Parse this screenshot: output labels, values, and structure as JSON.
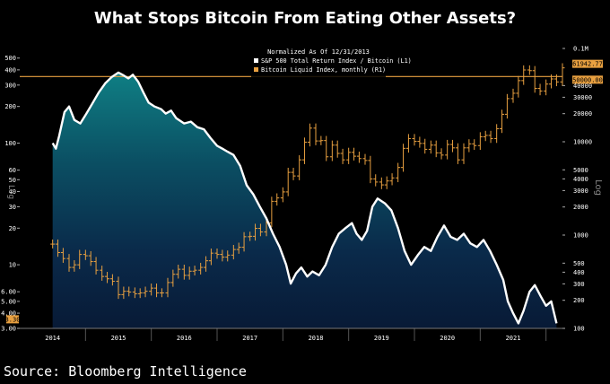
{
  "header": {
    "title": "What Stops Bitcoin From Eating Other Assets?"
  },
  "footer": {
    "source": "Source: Bloomberg Intelligence"
  },
  "chart_data": {
    "type": "line",
    "title": "",
    "legend_placement": "top-center",
    "legend": {
      "header": "Normalized As Of 12/31/2013",
      "items": [
        {
          "label": "S&P 500 Total Return Index / Bitcoin (L1)",
          "color": "#ffffff"
        },
        {
          "label": "Bitcoin Liquid Index, monthly (R1)",
          "color": "#e8a040"
        }
      ]
    },
    "x_categories": [
      "2014",
      "2015",
      "2016",
      "2017",
      "2018",
      "2019",
      "2020",
      "2021"
    ],
    "left_axis": {
      "label": "Log",
      "scale": "log",
      "range": [
        3,
        600
      ],
      "ticks": [
        "500",
        "400",
        "300",
        "200",
        "100",
        "60",
        "50",
        "40",
        "30",
        "20",
        "10",
        "6.00",
        "5.00",
        "4.00",
        "3.00"
      ],
      "tick_values": [
        500,
        400,
        300,
        200,
        100,
        60,
        50,
        40,
        30,
        20,
        10,
        6,
        5,
        4,
        3
      ]
    },
    "right_axis": {
      "label": "Log",
      "scale": "log",
      "range": [
        100,
        100000
      ],
      "ticks": [
        "0.1M",
        "40000",
        "30000",
        "20000",
        "10000",
        "5000",
        "4000",
        "3000",
        "2000",
        "1000",
        "500",
        "400",
        "300",
        "200",
        "100"
      ],
      "tick_values": [
        100000,
        40000,
        30000,
        20000,
        10000,
        5000,
        4000,
        3000,
        2000,
        1000,
        500,
        400,
        300,
        200,
        100
      ]
    },
    "reference_line": {
      "value": 50000,
      "axis": "right",
      "label": "50000.00",
      "color": "#e8a040"
    },
    "last_value_labels": [
      {
        "label": "61942.77",
        "axis": "right",
        "value": 61942.77,
        "color": "#e8a040"
      },
      {
        "label": "50000.00",
        "axis": "right",
        "value": 50000,
        "color": "#e8a040"
      },
      {
        "label": "3.30",
        "axis": "left",
        "value": 3.3,
        "color": "#e8a040"
      }
    ],
    "series": [
      {
        "name": "S&P 500 Total Return Index / Bitcoin (L1)",
        "axis": "left",
        "color": "#ffffff",
        "style": "line-area",
        "points": [
          [
            2014.0,
            100
          ],
          [
            2014.05,
            90
          ],
          [
            2014.1,
            115
          ],
          [
            2014.18,
            180
          ],
          [
            2014.25,
            200
          ],
          [
            2014.33,
            155
          ],
          [
            2014.42,
            145
          ],
          [
            2014.5,
            170
          ],
          [
            2014.6,
            210
          ],
          [
            2014.7,
            260
          ],
          [
            2014.8,
            310
          ],
          [
            2014.9,
            350
          ],
          [
            2015.0,
            380
          ],
          [
            2015.08,
            360
          ],
          [
            2015.15,
            340
          ],
          [
            2015.22,
            365
          ],
          [
            2015.3,
            320
          ],
          [
            2015.38,
            260
          ],
          [
            2015.46,
            215
          ],
          [
            2015.55,
            200
          ],
          [
            2015.65,
            190
          ],
          [
            2015.72,
            175
          ],
          [
            2015.8,
            185
          ],
          [
            2015.88,
            160
          ],
          [
            2016.0,
            145
          ],
          [
            2016.1,
            150
          ],
          [
            2016.2,
            135
          ],
          [
            2016.3,
            130
          ],
          [
            2016.4,
            110
          ],
          [
            2016.5,
            95
          ],
          [
            2016.58,
            90
          ],
          [
            2016.66,
            85
          ],
          [
            2016.75,
            80
          ],
          [
            2016.85,
            65
          ],
          [
            2016.95,
            45
          ],
          [
            2017.05,
            38
          ],
          [
            2017.15,
            30
          ],
          [
            2017.25,
            24
          ],
          [
            2017.35,
            18
          ],
          [
            2017.45,
            14
          ],
          [
            2017.55,
            10
          ],
          [
            2017.62,
            7
          ],
          [
            2017.7,
            8.5
          ],
          [
            2017.78,
            9.5
          ],
          [
            2017.87,
            8
          ],
          [
            2017.95,
            8.8
          ],
          [
            2018.05,
            8.2
          ],
          [
            2018.15,
            10
          ],
          [
            2018.25,
            14
          ],
          [
            2018.35,
            18
          ],
          [
            2018.45,
            20
          ],
          [
            2018.55,
            22
          ],
          [
            2018.62,
            18
          ],
          [
            2018.7,
            16
          ],
          [
            2018.78,
            19
          ],
          [
            2018.86,
            30
          ],
          [
            2018.94,
            35
          ],
          [
            2019.05,
            32
          ],
          [
            2019.15,
            28
          ],
          [
            2019.25,
            20
          ],
          [
            2019.35,
            13
          ],
          [
            2019.45,
            10
          ],
          [
            2019.55,
            12
          ],
          [
            2019.65,
            14
          ],
          [
            2019.75,
            13
          ],
          [
            2019.85,
            17
          ],
          [
            2019.95,
            21
          ],
          [
            2020.05,
            17
          ],
          [
            2020.15,
            16
          ],
          [
            2020.25,
            18
          ],
          [
            2020.35,
            15
          ],
          [
            2020.45,
            14
          ],
          [
            2020.55,
            16
          ],
          [
            2020.65,
            13
          ],
          [
            2020.75,
            10
          ],
          [
            2020.85,
            7.5
          ],
          [
            2020.92,
            5
          ],
          [
            2021.0,
            4
          ],
          [
            2021.08,
            3.3
          ],
          [
            2021.16,
            4.2
          ],
          [
            2021.25,
            6
          ],
          [
            2021.33,
            6.8
          ],
          [
            2021.42,
            5.5
          ],
          [
            2021.5,
            4.6
          ],
          [
            2021.58,
            5
          ],
          [
            2021.66,
            3.3
          ]
        ]
      },
      {
        "name": "Bitcoin Liquid Index, monthly (R1)",
        "axis": "right",
        "color": "#e8a040",
        "style": "ohlc-bars",
        "points": [
          [
            2014.0,
            800
          ],
          [
            2014.08,
            650
          ],
          [
            2014.16,
            560
          ],
          [
            2014.25,
            450
          ],
          [
            2014.33,
            480
          ],
          [
            2014.41,
            620
          ],
          [
            2014.5,
            600
          ],
          [
            2014.58,
            520
          ],
          [
            2014.66,
            420
          ],
          [
            2014.75,
            360
          ],
          [
            2014.83,
            340
          ],
          [
            2014.91,
            320
          ],
          [
            2015.0,
            230
          ],
          [
            2015.08,
            250
          ],
          [
            2015.16,
            245
          ],
          [
            2015.25,
            235
          ],
          [
            2015.33,
            240
          ],
          [
            2015.41,
            250
          ],
          [
            2015.5,
            270
          ],
          [
            2015.58,
            240
          ],
          [
            2015.66,
            240
          ],
          [
            2015.75,
            310
          ],
          [
            2015.83,
            380
          ],
          [
            2015.91,
            430
          ],
          [
            2016.0,
            370
          ],
          [
            2016.08,
            410
          ],
          [
            2016.16,
            420
          ],
          [
            2016.25,
            450
          ],
          [
            2016.33,
            530
          ],
          [
            2016.41,
            640
          ],
          [
            2016.5,
            620
          ],
          [
            2016.58,
            580
          ],
          [
            2016.66,
            610
          ],
          [
            2016.75,
            700
          ],
          [
            2016.83,
            740
          ],
          [
            2016.91,
            960
          ],
          [
            2017.0,
            970
          ],
          [
            2017.08,
            1180
          ],
          [
            2017.16,
            1080
          ],
          [
            2017.25,
            1350
          ],
          [
            2017.33,
            2300
          ],
          [
            2017.41,
            2500
          ],
          [
            2017.5,
            2900
          ],
          [
            2017.58,
            4700
          ],
          [
            2017.66,
            4300
          ],
          [
            2017.75,
            6400
          ],
          [
            2017.83,
            9900
          ],
          [
            2017.91,
            14000
          ],
          [
            2018.0,
            10200
          ],
          [
            2018.08,
            10300
          ],
          [
            2018.16,
            6900
          ],
          [
            2018.25,
            9200
          ],
          [
            2018.33,
            7500
          ],
          [
            2018.41,
            6400
          ],
          [
            2018.5,
            7700
          ],
          [
            2018.58,
            7000
          ],
          [
            2018.66,
            6600
          ],
          [
            2018.75,
            6300
          ],
          [
            2018.83,
            4000
          ],
          [
            2018.91,
            3700
          ],
          [
            2019.0,
            3450
          ],
          [
            2019.08,
            3800
          ],
          [
            2019.16,
            4100
          ],
          [
            2019.25,
            5300
          ],
          [
            2019.33,
            8500
          ],
          [
            2019.41,
            10800
          ],
          [
            2019.5,
            10100
          ],
          [
            2019.58,
            9600
          ],
          [
            2019.66,
            8300
          ],
          [
            2019.75,
            9200
          ],
          [
            2019.83,
            7600
          ],
          [
            2019.91,
            7200
          ],
          [
            2020.0,
            9350
          ],
          [
            2020.08,
            8600
          ],
          [
            2020.16,
            6400
          ],
          [
            2020.25,
            8600
          ],
          [
            2020.33,
            9500
          ],
          [
            2020.41,
            9100
          ],
          [
            2020.5,
            11300
          ],
          [
            2020.58,
            11700
          ],
          [
            2020.66,
            10800
          ],
          [
            2020.75,
            13800
          ],
          [
            2020.83,
            19700
          ],
          [
            2020.91,
            29000
          ],
          [
            2021.0,
            33100
          ],
          [
            2021.08,
            45200
          ],
          [
            2021.16,
            58800
          ],
          [
            2021.25,
            57800
          ],
          [
            2021.33,
            37300
          ],
          [
            2021.41,
            35000
          ],
          [
            2021.5,
            41500
          ],
          [
            2021.58,
            47100
          ],
          [
            2021.66,
            43800
          ],
          [
            2021.75,
            61942.77
          ]
        ]
      }
    ]
  }
}
